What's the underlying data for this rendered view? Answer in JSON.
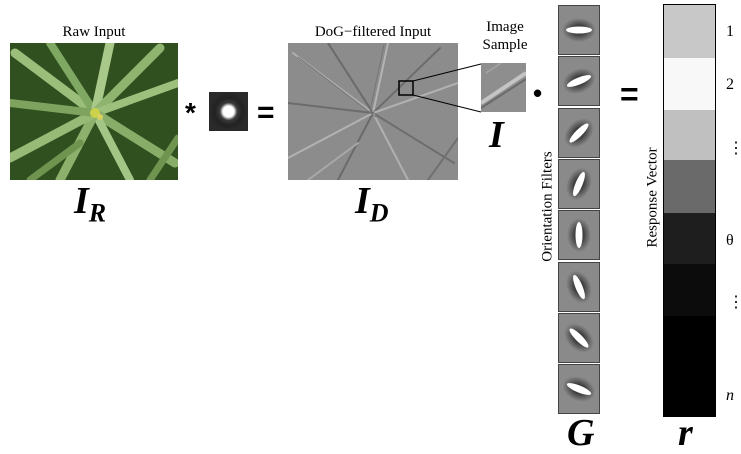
{
  "raw_input": {
    "title": "Raw Input",
    "symbol": "I",
    "subscript": "R"
  },
  "operators": {
    "convolve": "*",
    "equals1": "=",
    "dot": "•",
    "equals2": "="
  },
  "dog_filtered": {
    "title": "DoG−filtered Input",
    "symbol": "I",
    "subscript": "D"
  },
  "image_sample": {
    "title_line1": "Image",
    "title_line2": "Sample",
    "symbol": "I"
  },
  "orientation_filters": {
    "label": "Orientation Filters",
    "symbol": "G",
    "angles_deg": [
      0,
      22.5,
      45,
      67.5,
      90,
      112.5,
      135,
      157.5
    ]
  },
  "response_vector": {
    "label": "Response Vector",
    "symbol": "r",
    "cell_shades": [
      "#c8c8c8",
      "#f8f8f8",
      "#c0c0c0",
      "#6a6a6a",
      "#1e1e1e",
      "#0c0c0c",
      "#000000"
    ],
    "index_labels": [
      "1",
      "2",
      "⋮",
      "θ",
      "⋮",
      "n"
    ]
  },
  "colors": {
    "leaf_green": "#3f6b2a",
    "filtered_gray": "#8c8c8c"
  }
}
